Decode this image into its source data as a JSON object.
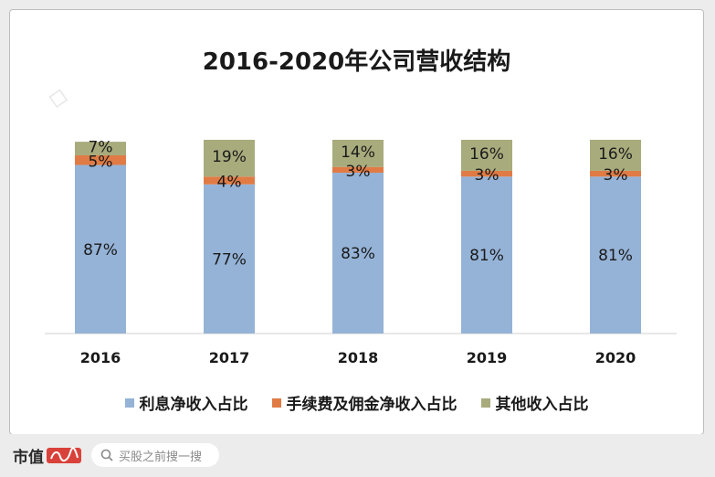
{
  "chart_data": {
    "type": "bar",
    "stacked": true,
    "title": "2016-2020年公司营收结构",
    "categories": [
      "2016",
      "2017",
      "2018",
      "2019",
      "2020"
    ],
    "series": [
      {
        "name": "利息净收入占比",
        "values": [
          87,
          77,
          83,
          81,
          81
        ],
        "labels": [
          "87%",
          "77%",
          "83%",
          "81%",
          "81%"
        ],
        "color": "#95b3d7"
      },
      {
        "name": "手续费及佣金净收入占比",
        "values": [
          5,
          4,
          3,
          3,
          3
        ],
        "labels": [
          "5%",
          "4%",
          "3%",
          "3%",
          "3%"
        ],
        "color": "#e07b45"
      },
      {
        "name": "其他收入占比",
        "values": [
          7,
          19,
          14,
          16,
          16
        ],
        "labels": [
          "7%",
          "19%",
          "14%",
          "16%",
          "16%"
        ],
        "color": "#a8ab7c"
      }
    ],
    "ylim": [
      0,
      100
    ],
    "grid": false,
    "legend": "bottom"
  },
  "footer": {
    "brand_text": "市值",
    "search_placeholder": "买股之前搜一搜"
  }
}
